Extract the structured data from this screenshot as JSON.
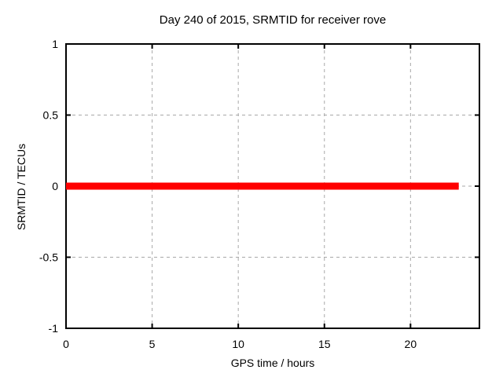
{
  "colors": {
    "background": "#ffffff",
    "axis_border": "#000000",
    "grid": "#a8a8a8",
    "text": "#000000",
    "series_red": "#ff0000"
  },
  "chart_data": {
    "type": "line",
    "title": "Day 240 of 2015, SRMTID for receiver rove",
    "xlabel": "GPS time / hours",
    "ylabel": "SRMTID / TECUs",
    "xlim": [
      0,
      24
    ],
    "ylim": [
      -1,
      1
    ],
    "xticks": [
      0,
      5,
      10,
      15,
      20
    ],
    "xtick_labels": [
      "0",
      "5",
      "10",
      "15",
      "20"
    ],
    "yticks": [
      -1,
      -0.5,
      0,
      0.5,
      1
    ],
    "ytick_labels": [
      "-1",
      "-0.5",
      "0",
      "0.5",
      "1"
    ],
    "grid": true,
    "legend": "none",
    "series": [
      {
        "name": "SRMTID",
        "color": "#ff0000",
        "linewidth": 9,
        "points": [
          {
            "x": 0,
            "y": 0
          },
          {
            "x": 22.8,
            "y": 0
          }
        ]
      }
    ]
  }
}
